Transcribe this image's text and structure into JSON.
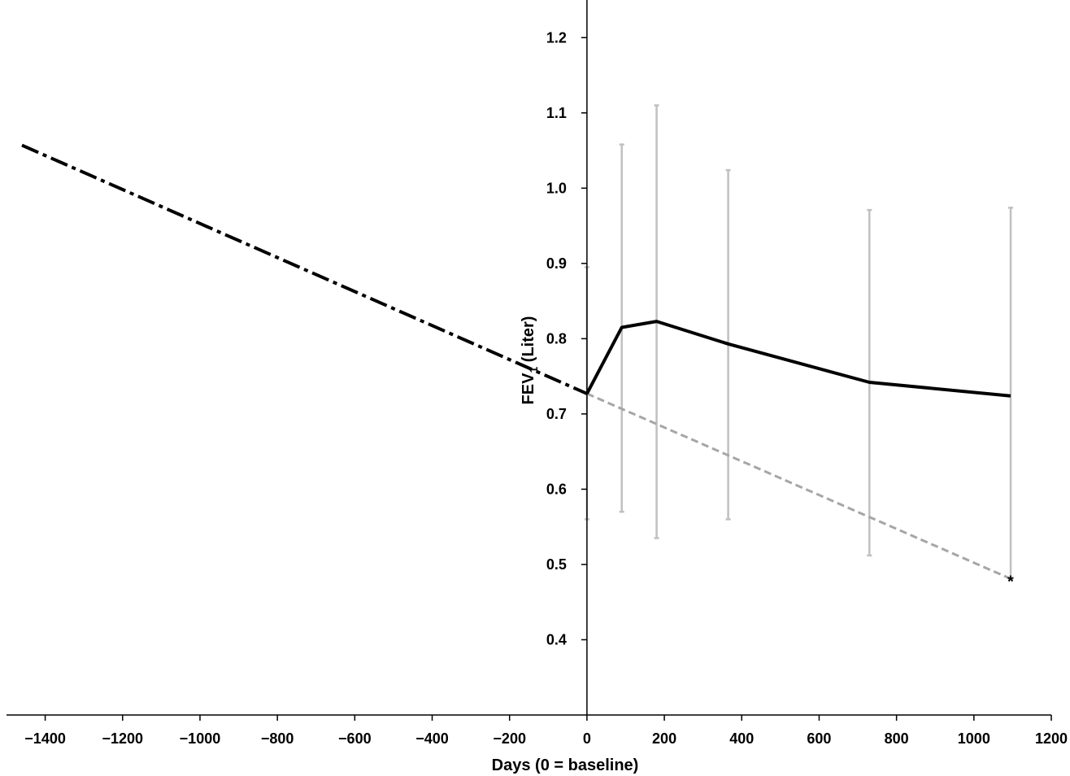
{
  "chart_data": {
    "type": "line",
    "title": "",
    "xlabel": "Days (0 = baseline)",
    "ylabel": {
      "prefix": "FEV",
      "subscript": "1",
      "suffix": " (Liter)"
    },
    "xlim": [
      -1500,
      1200
    ],
    "ylim": [
      0.3,
      1.25
    ],
    "xticks": [
      -1400,
      -1200,
      -1000,
      -800,
      -600,
      -400,
      -200,
      0,
      200,
      400,
      600,
      800,
      1000,
      1200
    ],
    "yticks": [
      0.4,
      0.5,
      0.6,
      0.7,
      0.8,
      0.9,
      1.0,
      1.1,
      1.2
    ],
    "ytick_labels": [
      "0.4",
      "0.5",
      "0.6",
      "0.7",
      "0.8",
      "0.9",
      "1.0",
      "1.1",
      "1.2"
    ],
    "xtick_labels": [
      "−1400",
      "−1200",
      "−1000",
      "−800",
      "−600",
      "−400",
      "−200",
      "0",
      "200",
      "400",
      "600",
      "800",
      "1000",
      "1200"
    ],
    "grid": false,
    "legend": "none",
    "series": [
      {
        "style": "dash-dot",
        "color": "#000000",
        "x": [
          -1460,
          0
        ],
        "y": [
          1.057,
          0.727
        ]
      },
      {
        "style": "dashed",
        "color": "#a6a6a6",
        "x": [
          0,
          1095
        ],
        "y": [
          0.727,
          0.481
        ]
      },
      {
        "style": "solid",
        "color": "#000000",
        "x": [
          0,
          90,
          180,
          365,
          730,
          1095
        ],
        "y": [
          0.727,
          0.815,
          0.823,
          0.793,
          0.742,
          0.724
        ],
        "error_bars": {
          "color": "#c0c0c0",
          "lower": [
            0.56,
            0.57,
            0.535,
            0.56,
            0.512,
            0.48
          ],
          "upper": [
            0.895,
            1.058,
            1.11,
            1.024,
            0.971,
            0.974
          ]
        }
      }
    ],
    "annotations": [
      {
        "text": "*",
        "x": 1095,
        "y": 0.481
      }
    ]
  }
}
